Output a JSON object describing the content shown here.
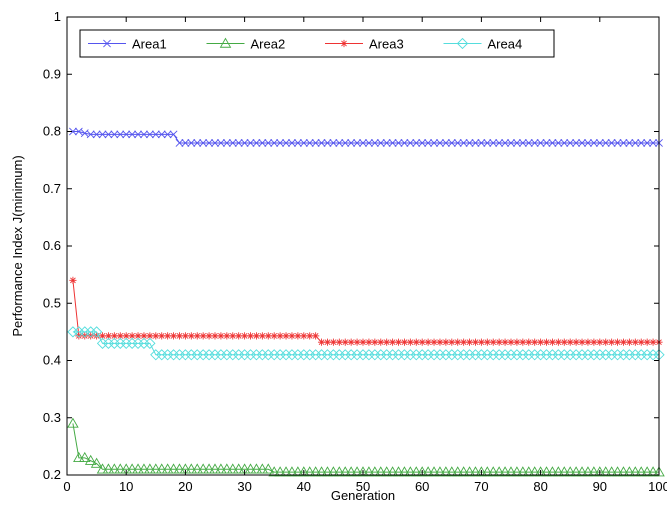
{
  "chart_data": {
    "type": "line",
    "xlabel": "Generation",
    "ylabel": "Performance Index J(minimum)",
    "xlim": [
      0,
      100
    ],
    "ylim": [
      0.2,
      1
    ],
    "x_ticks": [
      0,
      10,
      20,
      30,
      40,
      50,
      60,
      70,
      80,
      90,
      100
    ],
    "y_ticks": [
      0.2,
      0.3,
      0.4,
      0.5,
      0.6,
      0.7,
      0.8,
      0.9,
      1
    ],
    "x_tick_labels": [
      "0",
      "10",
      "20",
      "30",
      "40",
      "50",
      "60",
      "70",
      "80",
      "90",
      "100"
    ],
    "y_tick_labels": [
      "0.2",
      "0.3",
      "0.4",
      "0.5",
      "0.6",
      "0.7",
      "0.8",
      "0.9",
      "1"
    ],
    "grid": false,
    "legend_position": "top",
    "series": [
      {
        "name": "Area1",
        "color": "#5555ee",
        "marker": "x",
        "segments": [
          [
            1,
            19,
            0.795
          ],
          [
            19,
            100,
            0.78
          ]
        ],
        "overrides": [
          [
            1,
            0.8
          ],
          [
            2,
            0.8
          ],
          [
            3,
            0.797
          ]
        ]
      },
      {
        "name": "Area2",
        "color": "#44aa44",
        "marker": "triangle",
        "segments": [
          [
            6,
            35,
            0.21
          ],
          [
            35,
            100,
            0.205
          ]
        ],
        "overrides": [
          [
            1,
            0.29
          ],
          [
            2,
            0.23
          ],
          [
            3,
            0.23
          ],
          [
            4,
            0.225
          ],
          [
            5,
            0.22
          ]
        ]
      },
      {
        "name": "Area3",
        "color": "#ee3333",
        "marker": "star",
        "segments": [
          [
            2,
            43,
            0.443
          ],
          [
            43,
            100,
            0.432
          ]
        ],
        "overrides": [
          [
            1,
            0.54
          ]
        ]
      },
      {
        "name": "Area4",
        "color": "#55dddd",
        "marker": "diamond",
        "segments": [
          [
            6,
            15,
            0.43
          ],
          [
            15,
            100,
            0.41
          ]
        ],
        "overrides": [
          [
            1,
            0.45
          ],
          [
            2,
            0.45
          ],
          [
            3,
            0.45
          ],
          [
            4,
            0.45
          ],
          [
            5,
            0.45
          ]
        ]
      }
    ]
  }
}
